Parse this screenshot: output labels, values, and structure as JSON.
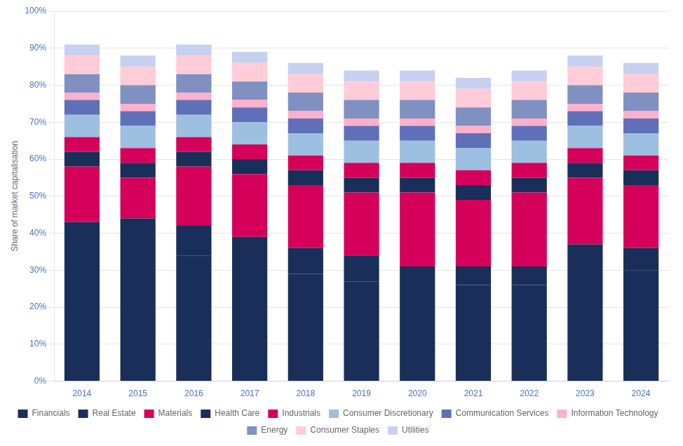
{
  "chart_data": {
    "type": "bar",
    "stacked": true,
    "categories": [
      "2014",
      "2015",
      "2016",
      "2017",
      "2018",
      "2019",
      "2020",
      "2021",
      "2022",
      "2023",
      "2024"
    ],
    "series": [
      {
        "name": "Financials",
        "color": "#1a2e5a",
        "values": [
          43,
          44,
          34,
          31,
          29,
          27,
          24,
          26,
          26,
          31,
          30
        ]
      },
      {
        "name": "Real Estate",
        "color": "#1a2e5a",
        "values": [
          0,
          0,
          8,
          8,
          7,
          7,
          7,
          5,
          5,
          6,
          6
        ]
      },
      {
        "name": "Materials",
        "color": "#d4005a",
        "values": [
          15,
          11,
          16,
          17,
          17,
          17,
          20,
          18,
          20,
          18,
          17
        ]
      },
      {
        "name": "Health Care",
        "color": "#1a2e5a",
        "values": [
          4,
          4,
          4,
          4,
          4,
          4,
          4,
          4,
          4,
          4,
          4
        ]
      },
      {
        "name": "Industrials",
        "color": "#d4005a",
        "values": [
          4,
          4,
          4,
          4,
          4,
          4,
          4,
          4,
          4,
          4,
          4
        ]
      },
      {
        "name": "Consumer Discretionary",
        "color": "#9dbfe0",
        "values": [
          6,
          6,
          6,
          6,
          6,
          6,
          6,
          6,
          6,
          6,
          6
        ]
      },
      {
        "name": "Communication Services",
        "color": "#6070b8",
        "values": [
          4,
          4,
          4,
          4,
          4,
          4,
          4,
          4,
          4,
          4,
          4
        ]
      },
      {
        "name": "Information Technology",
        "color": "#ffb0cc",
        "values": [
          2,
          2,
          2,
          2,
          2,
          2,
          2,
          2,
          2,
          2,
          2
        ]
      },
      {
        "name": "Energy",
        "color": "#8090c0",
        "values": [
          5,
          5,
          5,
          5,
          5,
          5,
          5,
          5,
          5,
          5,
          5
        ]
      },
      {
        "name": "Consumer Staples",
        "color": "#ffccd8",
        "values": [
          5,
          5,
          5,
          5,
          5,
          5,
          5,
          5,
          5,
          5,
          5
        ]
      },
      {
        "name": "Utilities",
        "color": "#c8d0f0",
        "values": [
          3,
          3,
          3,
          3,
          3,
          3,
          3,
          3,
          3,
          3,
          3
        ]
      }
    ],
    "ylabel": "Share of market capitalisation",
    "ylim": [
      0,
      100
    ],
    "yticks": [
      {
        "value": 0,
        "label": "0%"
      },
      {
        "value": 10,
        "label": "10%"
      },
      {
        "value": 20,
        "label": "20%"
      },
      {
        "value": 30,
        "label": "30%"
      },
      {
        "value": 40,
        "label": "40%"
      },
      {
        "value": 50,
        "label": "50%"
      },
      {
        "value": 60,
        "label": "60%"
      },
      {
        "value": 70,
        "label": "70%"
      },
      {
        "value": 80,
        "label": "80%"
      },
      {
        "value": 90,
        "label": "90%"
      },
      {
        "value": 100,
        "label": "100%"
      }
    ],
    "grid": true,
    "legend": "bottom"
  }
}
